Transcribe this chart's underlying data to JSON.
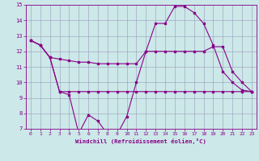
{
  "xlabel": "Windchill (Refroidissement éolien,°C)",
  "bg_color": "#cce8e8",
  "grid_color": "#9999bb",
  "line_color": "#880088",
  "xlim": [
    -0.5,
    23.5
  ],
  "ylim": [
    7,
    15
  ],
  "yticks": [
    7,
    8,
    9,
    10,
    11,
    12,
    13,
    14,
    15
  ],
  "xticks": [
    0,
    1,
    2,
    3,
    4,
    5,
    6,
    7,
    8,
    9,
    10,
    11,
    12,
    13,
    14,
    15,
    16,
    17,
    18,
    19,
    20,
    21,
    22,
    23
  ],
  "line1_x": [
    0,
    1,
    2,
    3,
    4,
    5,
    6,
    7,
    8,
    9,
    10,
    11,
    12,
    13,
    14,
    15,
    16,
    17,
    18,
    19,
    20,
    21,
    22,
    23
  ],
  "line1_y": [
    12.7,
    12.4,
    11.6,
    9.4,
    9.2,
    6.7,
    7.9,
    7.5,
    6.65,
    6.65,
    7.8,
    10.0,
    12.0,
    13.8,
    13.8,
    14.9,
    14.9,
    14.5,
    13.8,
    12.4,
    10.7,
    10.0,
    9.5,
    9.4
  ],
  "line2_x": [
    0,
    1,
    2,
    3,
    4,
    5,
    6,
    7,
    8,
    9,
    10,
    11,
    12,
    13,
    14,
    15,
    16,
    17,
    18,
    19,
    20,
    21,
    22,
    23
  ],
  "line2_y": [
    12.7,
    12.4,
    11.6,
    11.5,
    11.4,
    11.3,
    11.3,
    11.2,
    11.2,
    11.2,
    11.2,
    11.2,
    12.0,
    12.0,
    12.0,
    12.0,
    12.0,
    12.0,
    12.0,
    12.3,
    12.3,
    10.7,
    10.0,
    9.4
  ],
  "line3_x": [
    0,
    1,
    2,
    3,
    4,
    5,
    6,
    7,
    8,
    9,
    10,
    11,
    12,
    13,
    14,
    15,
    16,
    17,
    18,
    19,
    20,
    21,
    22,
    23
  ],
  "line3_y": [
    12.7,
    12.4,
    11.6,
    9.4,
    9.4,
    9.4,
    9.4,
    9.4,
    9.4,
    9.4,
    9.4,
    9.4,
    9.4,
    9.4,
    9.4,
    9.4,
    9.4,
    9.4,
    9.4,
    9.4,
    9.4,
    9.4,
    9.4,
    9.4
  ]
}
